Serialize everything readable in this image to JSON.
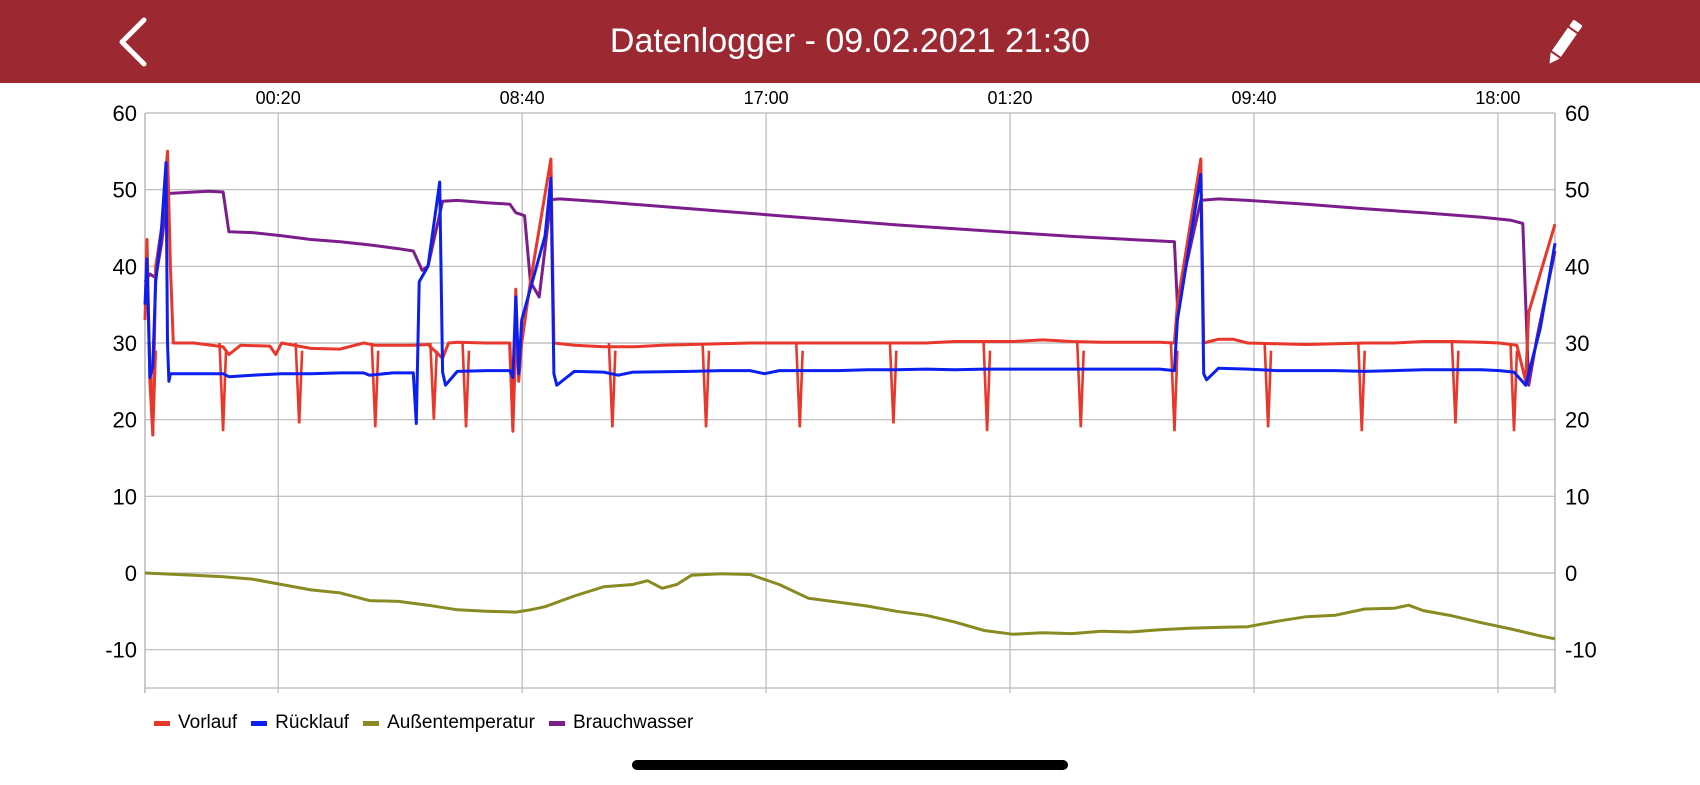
{
  "header": {
    "title": "Datenlogger - 09.02.2021 21:30",
    "back_icon": "chevron-left-icon",
    "edit_icon": "pencil-icon",
    "bar_color": "#9c2832"
  },
  "chart_data": {
    "type": "line",
    "title": "",
    "xlabel": "",
    "ylabel": "",
    "x_tick_labels": [
      "00:20",
      "08:40",
      "17:00",
      "01:20",
      "09:40",
      "18:00"
    ],
    "x_tick_hours": [
      2.883,
      11.217,
      19.55,
      27.883,
      36.217,
      44.55
    ],
    "x_range_hours": [
      -1.667,
      46.5
    ],
    "ylim": [
      -15,
      60
    ],
    "y_ticks": [
      -10,
      0,
      10,
      20,
      30,
      40,
      50,
      60
    ],
    "y_axis_right_mirror": true,
    "grid": true,
    "legend_position": "bottom-left",
    "series": [
      {
        "name": "Vorlauf",
        "color": "#e8372b",
        "points": [
          [
            -1.667,
            33
          ],
          [
            -1.6,
            43.5
          ],
          [
            -1.5,
            25
          ],
          [
            -1.4,
            18
          ],
          [
            -1.3,
            40
          ],
          [
            -1.1,
            45
          ],
          [
            -0.9,
            55
          ],
          [
            -0.8,
            40
          ],
          [
            -0.7,
            30
          ],
          [
            0,
            30
          ],
          [
            1,
            29.5
          ],
          [
            1.2,
            28.5
          ],
          [
            1.6,
            29.7
          ],
          [
            2.6,
            29.6
          ],
          [
            2.8,
            28.5
          ],
          [
            3.0,
            30
          ],
          [
            4.0,
            29.3
          ],
          [
            5.0,
            29.2
          ],
          [
            5.8,
            30
          ],
          [
            6.2,
            29.7
          ],
          [
            7.5,
            29.7
          ],
          [
            8.0,
            29.8
          ],
          [
            8.5,
            28
          ],
          [
            8.7,
            30
          ],
          [
            9.0,
            30.1
          ],
          [
            10.0,
            30
          ],
          [
            10.8,
            30
          ],
          [
            10.9,
            18.5
          ],
          [
            11.0,
            37
          ],
          [
            11.1,
            25
          ],
          [
            11.2,
            30
          ],
          [
            11.5,
            38
          ],
          [
            12.2,
            54
          ],
          [
            12.3,
            30
          ],
          [
            13.0,
            29.7
          ],
          [
            14.0,
            29.5
          ],
          [
            15.0,
            29.5
          ],
          [
            16.0,
            29.7
          ],
          [
            17.0,
            29.8
          ],
          [
            18.0,
            29.9
          ],
          [
            19.0,
            30
          ],
          [
            20.0,
            30
          ],
          [
            21.0,
            30
          ],
          [
            22.0,
            30
          ],
          [
            23.0,
            30
          ],
          [
            24.0,
            30
          ],
          [
            25.0,
            30
          ],
          [
            26.0,
            30.2
          ],
          [
            27.0,
            30.2
          ],
          [
            28.0,
            30.2
          ],
          [
            29.0,
            30.4
          ],
          [
            30.0,
            30.2
          ],
          [
            31.0,
            30.1
          ],
          [
            32.0,
            30.1
          ],
          [
            33.0,
            30.1
          ],
          [
            33.5,
            30
          ],
          [
            33.6,
            35
          ],
          [
            34.4,
            54
          ],
          [
            34.5,
            30
          ],
          [
            35.0,
            30.5
          ],
          [
            35.5,
            30.5
          ],
          [
            36.0,
            30
          ],
          [
            37.0,
            29.9
          ],
          [
            38.0,
            29.8
          ],
          [
            39.0,
            29.9
          ],
          [
            40.0,
            30
          ],
          [
            41.0,
            30
          ],
          [
            42.0,
            30.2
          ],
          [
            43.0,
            30.2
          ],
          [
            44.0,
            30.1
          ],
          [
            44.6,
            30
          ],
          [
            45.2,
            29.7
          ],
          [
            45.5,
            25
          ],
          [
            45.6,
            34
          ],
          [
            46.5,
            45.5
          ]
        ],
        "dips": [
          [
            -1.4,
            18
          ],
          [
            1.0,
            18.5
          ],
          [
            3.6,
            19.5
          ],
          [
            6.2,
            19
          ],
          [
            8.2,
            20
          ],
          [
            9.3,
            19
          ],
          [
            10.9,
            18.5
          ],
          [
            14.3,
            19
          ],
          [
            17.5,
            19
          ],
          [
            20.7,
            19
          ],
          [
            23.9,
            19.5
          ],
          [
            27.1,
            18.5
          ],
          [
            30.3,
            19
          ],
          [
            33.5,
            18.5
          ],
          [
            36.7,
            19
          ],
          [
            39.9,
            18.5
          ],
          [
            43.1,
            19.5
          ],
          [
            45.1,
            18.5
          ]
        ]
      },
      {
        "name": "Rücklauf",
        "color": "#0a1ff0",
        "points": [
          [
            -1.667,
            35
          ],
          [
            -1.6,
            41
          ],
          [
            -1.5,
            25.5
          ],
          [
            -1.4,
            27
          ],
          [
            -1.3,
            38
          ],
          [
            -1.1,
            45
          ],
          [
            -0.95,
            53.5
          ],
          [
            -0.9,
            30
          ],
          [
            -0.85,
            25
          ],
          [
            -0.8,
            26
          ],
          [
            0.5,
            26
          ],
          [
            1.0,
            26
          ],
          [
            1.2,
            25.6
          ],
          [
            2.0,
            25.8
          ],
          [
            3.0,
            26
          ],
          [
            4.0,
            26
          ],
          [
            5.0,
            26.1
          ],
          [
            5.8,
            26.1
          ],
          [
            6.0,
            25.8
          ],
          [
            6.8,
            26.1
          ],
          [
            7.5,
            26.1
          ],
          [
            7.6,
            19.5
          ],
          [
            7.7,
            38
          ],
          [
            8.0,
            40
          ],
          [
            8.4,
            51
          ],
          [
            8.5,
            26.2
          ],
          [
            8.6,
            24.5
          ],
          [
            9.0,
            26.3
          ],
          [
            10.0,
            26.4
          ],
          [
            10.8,
            26.4
          ],
          [
            10.9,
            25.5
          ],
          [
            11.0,
            36
          ],
          [
            11.1,
            26
          ],
          [
            11.2,
            33
          ],
          [
            12.0,
            44
          ],
          [
            12.2,
            51.5
          ],
          [
            12.3,
            26
          ],
          [
            12.4,
            24.5
          ],
          [
            13.0,
            26.3
          ],
          [
            14.0,
            26.2
          ],
          [
            14.5,
            25.8
          ],
          [
            15.0,
            26.2
          ],
          [
            17.0,
            26.3
          ],
          [
            18.0,
            26.4
          ],
          [
            19.0,
            26.4
          ],
          [
            19.5,
            26
          ],
          [
            20.0,
            26.4
          ],
          [
            22.0,
            26.4
          ],
          [
            23.0,
            26.5
          ],
          [
            24.0,
            26.5
          ],
          [
            25.0,
            26.6
          ],
          [
            26.0,
            26.5
          ],
          [
            27.0,
            26.6
          ],
          [
            28.0,
            26.6
          ],
          [
            29.0,
            26.6
          ],
          [
            30.0,
            26.6
          ],
          [
            31.0,
            26.6
          ],
          [
            32.0,
            26.6
          ],
          [
            33.0,
            26.6
          ],
          [
            33.5,
            26.4
          ],
          [
            33.6,
            33
          ],
          [
            34.4,
            52
          ],
          [
            34.5,
            26
          ],
          [
            34.6,
            25.2
          ],
          [
            35.0,
            26.7
          ],
          [
            36.0,
            26.6
          ],
          [
            37.0,
            26.4
          ],
          [
            38.0,
            26.4
          ],
          [
            39.0,
            26.4
          ],
          [
            40.0,
            26.3
          ],
          [
            41.0,
            26.4
          ],
          [
            42.0,
            26.5
          ],
          [
            43.0,
            26.5
          ],
          [
            44.0,
            26.5
          ],
          [
            44.6,
            26.4
          ],
          [
            45.1,
            26.2
          ],
          [
            45.5,
            24.5
          ],
          [
            46.0,
            32
          ],
          [
            46.5,
            43
          ]
        ]
      },
      {
        "name": "Außentemperatur",
        "color": "#8a8a22",
        "points": [
          [
            -1.667,
            0
          ],
          [
            0,
            -0.3
          ],
          [
            1,
            -0.5
          ],
          [
            2,
            -0.8
          ],
          [
            3,
            -1.5
          ],
          [
            4,
            -2.2
          ],
          [
            5,
            -2.6
          ],
          [
            6,
            -3.6
          ],
          [
            7,
            -3.7
          ],
          [
            8,
            -4.2
          ],
          [
            9,
            -4.8
          ],
          [
            10,
            -5.0
          ],
          [
            11,
            -5.1
          ],
          [
            11.5,
            -4.8
          ],
          [
            12,
            -4.4
          ],
          [
            13,
            -3.0
          ],
          [
            14,
            -1.8
          ],
          [
            15,
            -1.5
          ],
          [
            15.5,
            -1.0
          ],
          [
            16,
            -2.0
          ],
          [
            16.5,
            -1.5
          ],
          [
            17,
            -0.3
          ],
          [
            18,
            -0.1
          ],
          [
            19,
            -0.2
          ],
          [
            20,
            -1.5
          ],
          [
            21,
            -3.3
          ],
          [
            22,
            -3.8
          ],
          [
            23,
            -4.3
          ],
          [
            24,
            -5.0
          ],
          [
            25,
            -5.5
          ],
          [
            26,
            -6.4
          ],
          [
            27,
            -7.5
          ],
          [
            28,
            -8.0
          ],
          [
            29,
            -7.8
          ],
          [
            30,
            -7.9
          ],
          [
            31,
            -7.6
          ],
          [
            32,
            -7.7
          ],
          [
            33,
            -7.4
          ],
          [
            34,
            -7.2
          ],
          [
            35,
            -7.1
          ],
          [
            36,
            -7.0
          ],
          [
            37,
            -6.3
          ],
          [
            38,
            -5.7
          ],
          [
            39,
            -5.5
          ],
          [
            40,
            -4.7
          ],
          [
            41,
            -4.6
          ],
          [
            41.5,
            -4.2
          ],
          [
            42,
            -4.9
          ],
          [
            43,
            -5.6
          ],
          [
            44,
            -6.5
          ],
          [
            45,
            -7.3
          ],
          [
            46,
            -8.2
          ],
          [
            46.5,
            -8.6
          ]
        ]
      },
      {
        "name": "Brauchwasser",
        "color": "#7b1e8c",
        "points": [
          [
            -1.667,
            38
          ],
          [
            -1.5,
            39
          ],
          [
            -1.3,
            38.5
          ],
          [
            -1.1,
            43
          ],
          [
            -0.9,
            49.5
          ],
          [
            0.5,
            49.8
          ],
          [
            1.0,
            49.7
          ],
          [
            1.2,
            44.5
          ],
          [
            2.0,
            44.4
          ],
          [
            3.0,
            44.0
          ],
          [
            4.0,
            43.5
          ],
          [
            5.0,
            43.2
          ],
          [
            6.0,
            42.8
          ],
          [
            7.0,
            42.3
          ],
          [
            7.5,
            42.0
          ],
          [
            7.8,
            39.5
          ],
          [
            8.0,
            40
          ],
          [
            8.5,
            48.5
          ],
          [
            9.0,
            48.6
          ],
          [
            10.0,
            48.3
          ],
          [
            10.8,
            48.1
          ],
          [
            11.0,
            47
          ],
          [
            11.3,
            46.6
          ],
          [
            11.5,
            38
          ],
          [
            11.8,
            36
          ],
          [
            12.2,
            48.7
          ],
          [
            12.5,
            48.8
          ],
          [
            14.0,
            48.4
          ],
          [
            16.0,
            47.8
          ],
          [
            18.0,
            47.2
          ],
          [
            20.0,
            46.6
          ],
          [
            22.0,
            46.0
          ],
          [
            24.0,
            45.4
          ],
          [
            26.0,
            44.9
          ],
          [
            28.0,
            44.4
          ],
          [
            30.0,
            43.9
          ],
          [
            32.0,
            43.5
          ],
          [
            33.5,
            43.2
          ],
          [
            33.6,
            35
          ],
          [
            34.4,
            48.6
          ],
          [
            35.0,
            48.8
          ],
          [
            36.0,
            48.6
          ],
          [
            38.0,
            48.1
          ],
          [
            40.0,
            47.5
          ],
          [
            42.0,
            47.0
          ],
          [
            44.0,
            46.4
          ],
          [
            45.0,
            46.0
          ],
          [
            45.4,
            45.6
          ],
          [
            45.6,
            24.5
          ],
          [
            45.9,
            31
          ],
          [
            46.5,
            42
          ]
        ]
      }
    ]
  }
}
